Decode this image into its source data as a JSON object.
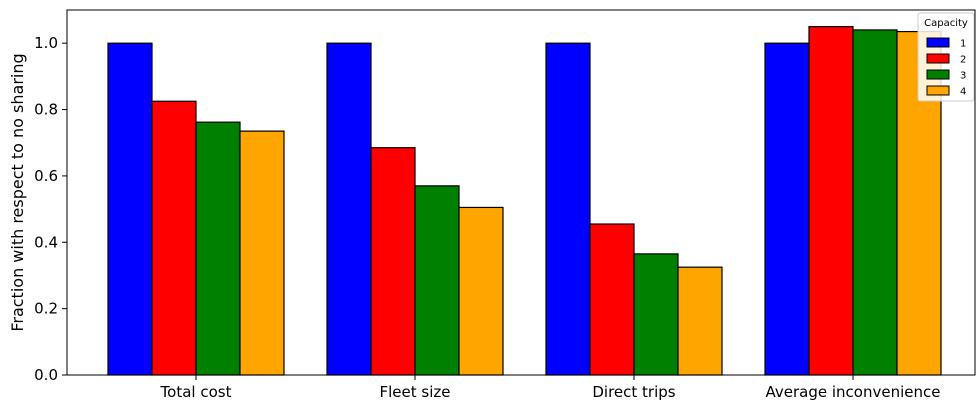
{
  "chart_data": {
    "type": "bar",
    "categories": [
      "Total cost",
      "Fleet size",
      "Direct trips",
      "Average inconvenience"
    ],
    "ylabel": "Fraction with respect to no sharing",
    "xlabel": "",
    "ylim": [
      0,
      1.1
    ],
    "yticks": [
      "0.0",
      "0.2",
      "0.4",
      "0.6",
      "0.8",
      "1.0"
    ],
    "legend": {
      "title": "Capacity",
      "placement": "top-right"
    },
    "series": [
      {
        "name": "1",
        "color": "#0000ff",
        "values": [
          1.0,
          1.0,
          1.0,
          1.0
        ]
      },
      {
        "name": "2",
        "color": "#ff0000",
        "values": [
          0.825,
          0.685,
          0.455,
          1.05
        ]
      },
      {
        "name": "3",
        "color": "#008000",
        "values": [
          0.762,
          0.57,
          0.365,
          1.04
        ]
      },
      {
        "name": "4",
        "color": "#ffa500",
        "values": [
          0.735,
          0.505,
          0.325,
          1.035
        ]
      }
    ],
    "grid": false
  }
}
